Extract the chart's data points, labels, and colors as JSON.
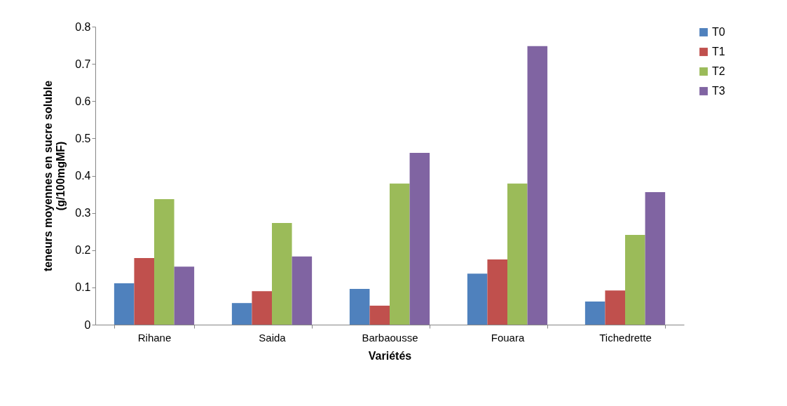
{
  "chart_data": {
    "type": "bar",
    "xlabel": "Variétés",
    "ylabel": "teneurs moyennes en sucre soluble\n(g/100mgMF)",
    "categories": [
      "Rihane",
      "Saida",
      "Barbaousse",
      "Fouara",
      "Tichedrette"
    ],
    "series": [
      {
        "name": "T0",
        "color": "#4f81bd",
        "values": [
          0.111,
          0.058,
          0.096,
          0.137,
          0.062
        ]
      },
      {
        "name": "T1",
        "color": "#c0504d",
        "values": [
          0.179,
          0.09,
          0.051,
          0.175,
          0.092
        ]
      },
      {
        "name": "T2",
        "color": "#9bbb59",
        "values": [
          0.337,
          0.273,
          0.379,
          0.379,
          0.241
        ]
      },
      {
        "name": "T3",
        "color": "#8064a2",
        "values": [
          0.156,
          0.183,
          0.461,
          0.748,
          0.356
        ]
      }
    ],
    "ylim": [
      0,
      0.8
    ],
    "yticks": [
      0,
      0.1,
      0.2,
      0.3,
      0.4,
      0.5,
      0.6,
      0.7,
      0.8
    ],
    "grid": false,
    "legend": "right"
  }
}
